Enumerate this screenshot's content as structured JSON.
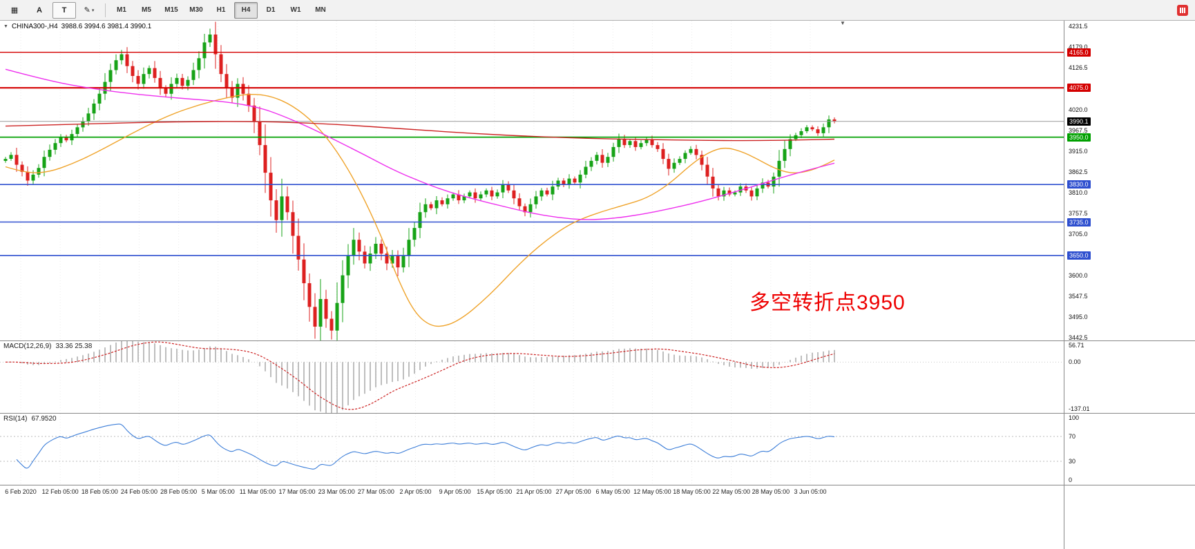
{
  "toolbar": {
    "windows_icon_glyph": "▦",
    "cursor_label": "A",
    "text_tool_label": "T",
    "pencil_glyph": "✎",
    "caret_glyph": "▾",
    "timeframes": [
      {
        "label": "M1",
        "active": false
      },
      {
        "label": "M5",
        "active": false
      },
      {
        "label": "M15",
        "active": false
      },
      {
        "label": "M30",
        "active": false
      },
      {
        "label": "H1",
        "active": false
      },
      {
        "label": "H4",
        "active": true
      },
      {
        "label": "D1",
        "active": false
      },
      {
        "label": "W1",
        "active": false
      },
      {
        "label": "MN",
        "active": false
      }
    ]
  },
  "chart": {
    "header": {
      "collapse_glyph": "▼",
      "symbol_timeframe": "CHINA300-,H4",
      "ohlc": "3988.6 3994.6 3981.4 3990.1"
    }
  },
  "badges": [
    {
      "text": "4165.0",
      "value": 4165.0,
      "color": "#d40000"
    },
    {
      "text": "4075.0",
      "value": 4075.0,
      "color": "#d40000"
    },
    {
      "text": "3990.1",
      "value": 3990.1,
      "color": "#000000"
    },
    {
      "text": "3950.0",
      "value": 3950.0,
      "color": "#00a000"
    },
    {
      "text": "3830.0",
      "value": 3830.0,
      "color": "#2e4fcf"
    },
    {
      "text": "3735.0",
      "value": 3735.0,
      "color": "#2e4fcf"
    },
    {
      "text": "3650.0",
      "value": 3650.0,
      "color": "#2e4fcf"
    }
  ],
  "chart_data": {
    "type": "candlestick",
    "symbol": "CHINA300-",
    "timeframe": "H4",
    "last_ohlc": {
      "open": 3988.6,
      "high": 3994.6,
      "low": 3981.4,
      "close": 3990.1
    },
    "y_axis": {
      "min": 3442.5,
      "max": 4231.5,
      "ticks": [
        4231.5,
        4179.0,
        4126.5,
        4020.0,
        3967.5,
        3915.0,
        3862.5,
        3810.0,
        3757.5,
        3705.0,
        3600.0,
        3547.5,
        3495.0,
        3442.5
      ]
    },
    "open_first": 3890,
    "closes": [
      3895,
      3905,
      3880,
      3862,
      3840,
      3855,
      3872,
      3900,
      3918,
      3935,
      3950,
      3942,
      3958,
      3975,
      3990,
      4010,
      4035,
      4060,
      4090,
      4120,
      4145,
      4160,
      4130,
      4105,
      4085,
      4110,
      4125,
      4100,
      4075,
      4060,
      4085,
      4100,
      4080,
      4095,
      4120,
      4150,
      4190,
      4210,
      4160,
      4110,
      4075,
      4050,
      4085,
      4060,
      4030,
      3990,
      3930,
      3860,
      3790,
      3740,
      3800,
      3760,
      3700,
      3640,
      3580,
      3520,
      3470,
      3540,
      3490,
      3460,
      3530,
      3600,
      3650,
      3690,
      3660,
      3630,
      3655,
      3680,
      3655,
      3630,
      3650,
      3620,
      3650,
      3690,
      3720,
      3760,
      3780,
      3770,
      3790,
      3780,
      3795,
      3805,
      3790,
      3800,
      3810,
      3795,
      3805,
      3815,
      3800,
      3810,
      3830,
      3815,
      3795,
      3775,
      3760,
      3780,
      3800,
      3815,
      3805,
      3825,
      3840,
      3830,
      3845,
      3835,
      3855,
      3875,
      3890,
      3905,
      3885,
      3900,
      3925,
      3945,
      3930,
      3940,
      3925,
      3935,
      3945,
      3930,
      3920,
      3895,
      3870,
      3885,
      3895,
      3910,
      3920,
      3905,
      3880,
      3850,
      3820,
      3800,
      3815,
      3805,
      3810,
      3825,
      3815,
      3800,
      3820,
      3835,
      3825,
      3850,
      3890,
      3920,
      3945,
      3955,
      3965,
      3975,
      3970,
      3960,
      3975,
      3995,
      3990.1
    ],
    "up_color": "#17a317",
    "down_color": "#dd2020",
    "horizontal_levels": [
      {
        "price": 4165.0,
        "color": "#d40000",
        "width": 1.4,
        "type": "resistance"
      },
      {
        "price": 4075.0,
        "color": "#d40000",
        "width": 2.2,
        "type": "resistance"
      },
      {
        "price": 3990.1,
        "color": "#9a9a9a",
        "width": 1,
        "type": "current-price"
      },
      {
        "price": 3950.0,
        "color": "#00a000",
        "width": 1.8,
        "type": "pivot"
      },
      {
        "price": 3830.0,
        "color": "#2e4fcf",
        "width": 1.6,
        "type": "support"
      },
      {
        "price": 3735.0,
        "color": "#2e4fcf",
        "width": 1.6,
        "type": "support"
      },
      {
        "price": 3650.0,
        "color": "#2e4fcf",
        "width": 1.6,
        "type": "support"
      }
    ],
    "moving_averages": [
      {
        "name": "ma-orange",
        "color": "#efa32a",
        "points": [
          [
            0,
            3875
          ],
          [
            4,
            3858
          ],
          [
            8,
            3862
          ],
          [
            12,
            3882
          ],
          [
            16,
            3908
          ],
          [
            20,
            3938
          ],
          [
            25,
            3975
          ],
          [
            30,
            4008
          ],
          [
            35,
            4032
          ],
          [
            40,
            4050
          ],
          [
            44,
            4060
          ],
          [
            48,
            4055
          ],
          [
            52,
            4030
          ],
          [
            56,
            3985
          ],
          [
            60,
            3915
          ],
          [
            64,
            3820
          ],
          [
            68,
            3700
          ],
          [
            71,
            3590
          ],
          [
            74,
            3505
          ],
          [
            77,
            3470
          ],
          [
            80,
            3472
          ],
          [
            83,
            3495
          ],
          [
            86,
            3530
          ],
          [
            89,
            3570
          ],
          [
            92,
            3615
          ],
          [
            95,
            3655
          ],
          [
            98,
            3690
          ],
          [
            101,
            3720
          ],
          [
            104,
            3742
          ],
          [
            108,
            3762
          ],
          [
            112,
            3778
          ],
          [
            116,
            3795
          ],
          [
            120,
            3830
          ],
          [
            124,
            3880
          ],
          [
            127,
            3910
          ],
          [
            130,
            3925
          ],
          [
            133,
            3915
          ],
          [
            136,
            3895
          ],
          [
            139,
            3872
          ],
          [
            142,
            3858
          ],
          [
            145,
            3862
          ],
          [
            148,
            3878
          ],
          [
            150,
            3892
          ]
        ]
      },
      {
        "name": "ma-magenta",
        "color": "#ee30ee",
        "points": [
          [
            0,
            4122
          ],
          [
            8,
            4092
          ],
          [
            16,
            4072
          ],
          [
            24,
            4058
          ],
          [
            32,
            4048
          ],
          [
            40,
            4040
          ],
          [
            46,
            4025
          ],
          [
            50,
            4005
          ],
          [
            55,
            3975
          ],
          [
            60,
            3940
          ],
          [
            65,
            3905
          ],
          [
            70,
            3868
          ],
          [
            75,
            3838
          ],
          [
            80,
            3812
          ],
          [
            85,
            3792
          ],
          [
            90,
            3775
          ],
          [
            95,
            3758
          ],
          [
            100,
            3746
          ],
          [
            105,
            3740
          ],
          [
            110,
            3744
          ],
          [
            115,
            3754
          ],
          [
            120,
            3768
          ],
          [
            125,
            3784
          ],
          [
            130,
            3803
          ],
          [
            135,
            3824
          ],
          [
            140,
            3846
          ],
          [
            145,
            3866
          ],
          [
            150,
            3884
          ]
        ]
      },
      {
        "name": "ma-red",
        "color": "#cc2222",
        "points": [
          [
            0,
            3978
          ],
          [
            15,
            3984
          ],
          [
            30,
            3989
          ],
          [
            45,
            3990
          ],
          [
            55,
            3986
          ],
          [
            65,
            3978
          ],
          [
            75,
            3968
          ],
          [
            85,
            3959
          ],
          [
            95,
            3952
          ],
          [
            105,
            3947
          ],
          [
            115,
            3944
          ],
          [
            125,
            3942
          ],
          [
            135,
            3941
          ],
          [
            145,
            3943
          ],
          [
            150,
            3945
          ]
        ]
      }
    ],
    "time_axis": [
      "6 Feb 2020",
      "12 Feb 05:00",
      "18 Feb 05:00",
      "24 Feb 05:00",
      "28 Feb 05:00",
      "5 Mar 05:00",
      "11 Mar 05:00",
      "17 Mar 05:00",
      "23 Mar 05:00",
      "27 Mar 05:00",
      "2 Apr 05:00",
      "9 Apr 05:00",
      "15 Apr 05:00",
      "21 Apr 05:00",
      "27 Apr 05:00",
      "6 May 05:00",
      "12 May 05:00",
      "18 May 05:00",
      "22 May 05:00",
      "28 May 05:00",
      "3 Jun 05:00"
    ],
    "indicators": {
      "macd": {
        "label": "MACD(12,26,9)",
        "values": "33.36 25.38",
        "axis_labels": [
          "56.71",
          "0.00",
          "-137.01"
        ],
        "axis_values": [
          56.71,
          0,
          -137.01
        ],
        "histogram_color": "#9a9a9a",
        "signal_color": "#cc2222"
      },
      "rsi": {
        "label": "RSI(14)",
        "value": "67.9520",
        "axis_labels": [
          "100",
          "70",
          "30",
          "0"
        ],
        "axis_values": [
          100,
          70,
          30,
          0
        ],
        "levels": [
          70,
          30
        ],
        "line_color": "#3b7dd8"
      }
    },
    "annotation": {
      "text": "多空转折点3950",
      "color": "#ee0000"
    }
  }
}
